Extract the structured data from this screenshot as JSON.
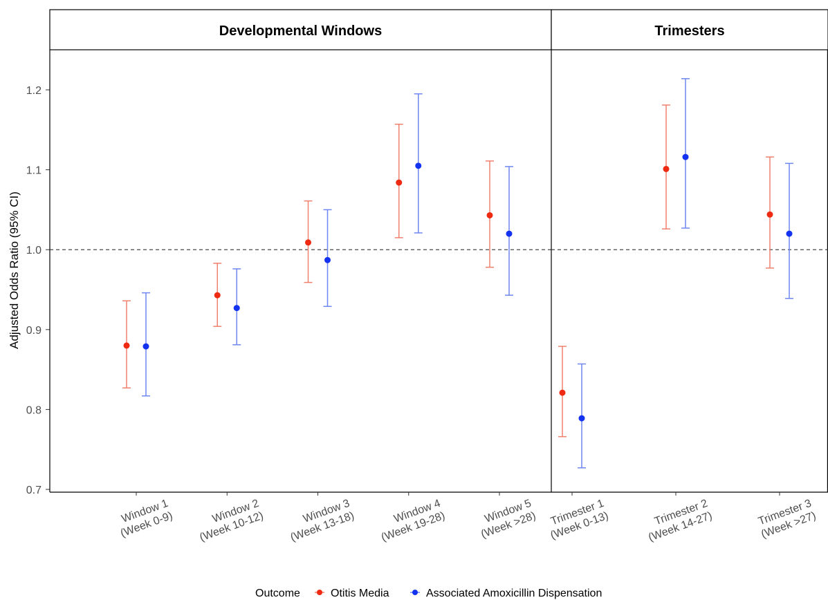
{
  "chart_data": {
    "type": "scatter",
    "ylabel": "Adjusted Odds Ratio (95% CI)",
    "ylim": [
      0.7,
      1.25
    ],
    "yticks": [
      "0.7",
      "0.8",
      "0.9",
      "1.0",
      "1.1",
      "1.2"
    ],
    "reference_line": 1.0,
    "grid": false,
    "legend": {
      "title": "Outcome",
      "position": "bottom",
      "entries": [
        "Otitis Media",
        "Associated Amoxicillin Dispensation"
      ]
    },
    "colors": {
      "Otitis Media": "#ee2a12",
      "Associated Amoxicillin Dispensation": "#1433f0",
      "ci_Otitis Media": "#f0806e",
      "ci_Associated Amoxicillin Dispensation": "#6f86f0"
    },
    "panels": [
      {
        "title": "Developmental Windows",
        "categories": [
          [
            "Window 1",
            "(Week 0-9)"
          ],
          [
            "Window 2",
            "(Week 10-12)"
          ],
          [
            "Window 3",
            "(Week 13-18)"
          ],
          [
            "Window 4",
            "(Week 19-28)"
          ],
          [
            "Window 5",
            "(Week >28)"
          ]
        ],
        "series": [
          {
            "name": "Otitis Media",
            "estimate": [
              0.88,
              0.943,
              1.009,
              1.084,
              1.043
            ],
            "lower": [
              0.827,
              0.904,
              0.959,
              1.015,
              0.978
            ],
            "upper": [
              0.936,
              0.983,
              1.061,
              1.157,
              1.111
            ]
          },
          {
            "name": "Associated Amoxicillin Dispensation",
            "estimate": [
              0.879,
              0.927,
              0.987,
              1.105,
              1.02
            ],
            "lower": [
              0.817,
              0.881,
              0.929,
              1.021,
              0.943
            ],
            "upper": [
              0.946,
              0.976,
              1.05,
              1.195,
              1.104
            ]
          }
        ]
      },
      {
        "title": "Trimesters",
        "categories": [
          [
            "Trimester 1",
            "(Week 0-13)"
          ],
          [
            "Trimester 2",
            "(Week 14-27)"
          ],
          [
            "Trimester 3",
            "(Week >27)"
          ]
        ],
        "series": [
          {
            "name": "Otitis Media",
            "estimate": [
              0.821,
              1.101,
              1.044
            ],
            "lower": [
              0.766,
              1.026,
              0.977
            ],
            "upper": [
              0.879,
              1.181,
              1.116
            ]
          },
          {
            "name": "Associated Amoxicillin Dispensation",
            "estimate": [
              0.789,
              1.116,
              1.02
            ],
            "lower": [
              0.727,
              1.027,
              0.939
            ],
            "upper": [
              0.857,
              1.214,
              1.108
            ]
          }
        ]
      }
    ]
  }
}
